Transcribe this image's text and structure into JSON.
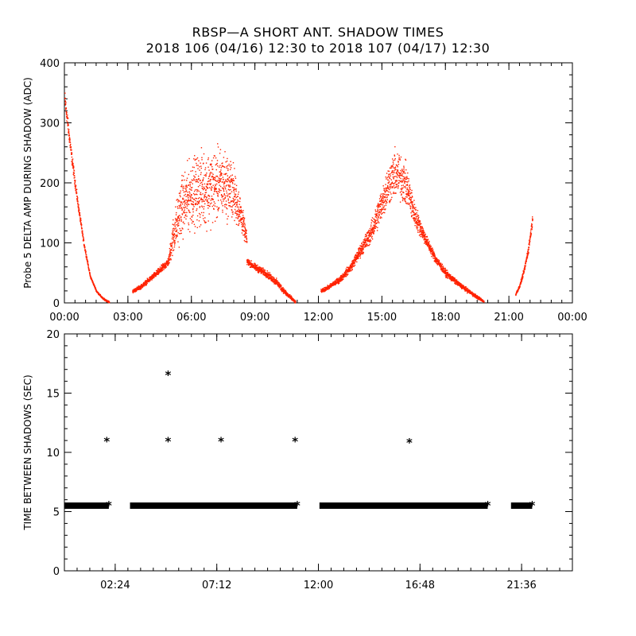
{
  "title": "RBSP—A SHORT ANT. SHADOW TIMES",
  "subtitle": "2018 106 (04/16) 12:30 to 2018 107 (04/17) 12:30",
  "colors": {
    "top_points": "#ff2200",
    "bottom_points": "#000000",
    "axes": "#000000"
  },
  "chart_data": [
    {
      "type": "scatter",
      "ylabel": "Probe 5 DELTA AMP DURING SHADOW (ADC)",
      "xlim": [
        0,
        24
      ],
      "ylim": [
        0,
        400
      ],
      "xticks": [
        {
          "v": 0,
          "label": "00:00"
        },
        {
          "v": 3,
          "label": "03:00"
        },
        {
          "v": 6,
          "label": "06:00"
        },
        {
          "v": 9,
          "label": "09:00"
        },
        {
          "v": 12,
          "label": "12:00"
        },
        {
          "v": 15,
          "label": "15:00"
        },
        {
          "v": 18,
          "label": "18:00"
        },
        {
          "v": 21,
          "label": "21:00"
        },
        {
          "v": 24,
          "label": "00:00"
        }
      ],
      "yticks": [
        {
          "v": 0,
          "label": "0"
        },
        {
          "v": 100,
          "label": "100"
        },
        {
          "v": 200,
          "label": "200"
        },
        {
          "v": 300,
          "label": "300"
        },
        {
          "v": 400,
          "label": "400"
        }
      ],
      "x_minor_step": 0.5,
      "y_minor_step": 20,
      "segments": [
        {
          "x": [
            0.0,
            0.3,
            0.6,
            0.9,
            1.2,
            1.5,
            1.8,
            2.1
          ],
          "y": [
            340,
            250,
            170,
            100,
            45,
            20,
            8,
            2
          ]
        },
        {
          "x": [
            3.2,
            3.6,
            4.0,
            4.5,
            4.9,
            5.1,
            5.5,
            6.0,
            6.5,
            7.0,
            7.4,
            7.9,
            8.3,
            8.6
          ],
          "y": [
            20,
            28,
            40,
            55,
            70,
            110,
            160,
            185,
            190,
            195,
            200,
            190,
            150,
            105
          ],
          "spread": [
            4,
            5,
            6,
            8,
            10,
            45,
            70,
            80,
            85,
            85,
            80,
            70,
            40,
            15
          ]
        },
        {
          "x": [
            8.6,
            9.0,
            9.5,
            10.0,
            10.5,
            10.9
          ],
          "y": [
            70,
            60,
            50,
            35,
            15,
            2
          ],
          "spread": [
            8,
            8,
            8,
            8,
            6,
            3
          ]
        },
        {
          "x": [
            12.1,
            12.5,
            13.0,
            13.5,
            14.0,
            14.5,
            15.0,
            15.3,
            15.6,
            15.9,
            16.2,
            16.5,
            17.0,
            17.5,
            18.0,
            18.5,
            19.0,
            19.5,
            19.8
          ],
          "y": [
            20,
            28,
            40,
            60,
            90,
            120,
            170,
            200,
            215,
            210,
            190,
            150,
            110,
            75,
            50,
            35,
            22,
            10,
            3
          ],
          "spread": [
            4,
            5,
            7,
            10,
            15,
            25,
            40,
            50,
            55,
            55,
            45,
            30,
            15,
            10,
            8,
            6,
            5,
            4,
            2
          ]
        },
        {
          "x": [
            21.3,
            21.5,
            21.7,
            21.9,
            22.1
          ],
          "y": [
            15,
            30,
            55,
            90,
            140
          ],
          "spread": [
            3,
            4,
            6,
            10,
            12
          ]
        }
      ]
    },
    {
      "type": "scatter",
      "ylabel": "TIME BETWEEN SHADOWS (SEC)",
      "xlim": [
        0,
        24
      ],
      "ylim": [
        0,
        20
      ],
      "xticks": [
        {
          "v": 2.4,
          "label": "02:24"
        },
        {
          "v": 7.2,
          "label": "07:12"
        },
        {
          "v": 12.0,
          "label": "12:00"
        },
        {
          "v": 16.8,
          "label": "16:48"
        },
        {
          "v": 21.6,
          "label": "21:36"
        }
      ],
      "yticks": [
        {
          "v": 0,
          "label": "0"
        },
        {
          "v": 5,
          "label": "5"
        },
        {
          "v": 10,
          "label": "10"
        },
        {
          "v": 15,
          "label": "15"
        },
        {
          "v": 20,
          "label": "20"
        }
      ],
      "x_minor_step": 0.6,
      "y_minor_step": 1,
      "marker": "*",
      "baseline_value": 5.5,
      "baseline_ranges": [
        [
          0.0,
          2.1
        ],
        [
          3.1,
          11.0
        ],
        [
          12.05,
          20.0
        ],
        [
          21.1,
          22.1
        ]
      ],
      "points": [
        {
          "x": 2.0,
          "y": 10.9
        },
        {
          "x": 4.9,
          "y": 16.5
        },
        {
          "x": 4.9,
          "y": 10.9
        },
        {
          "x": 7.4,
          "y": 10.9
        },
        {
          "x": 10.9,
          "y": 10.9
        },
        {
          "x": 16.3,
          "y": 10.8
        }
      ]
    }
  ]
}
